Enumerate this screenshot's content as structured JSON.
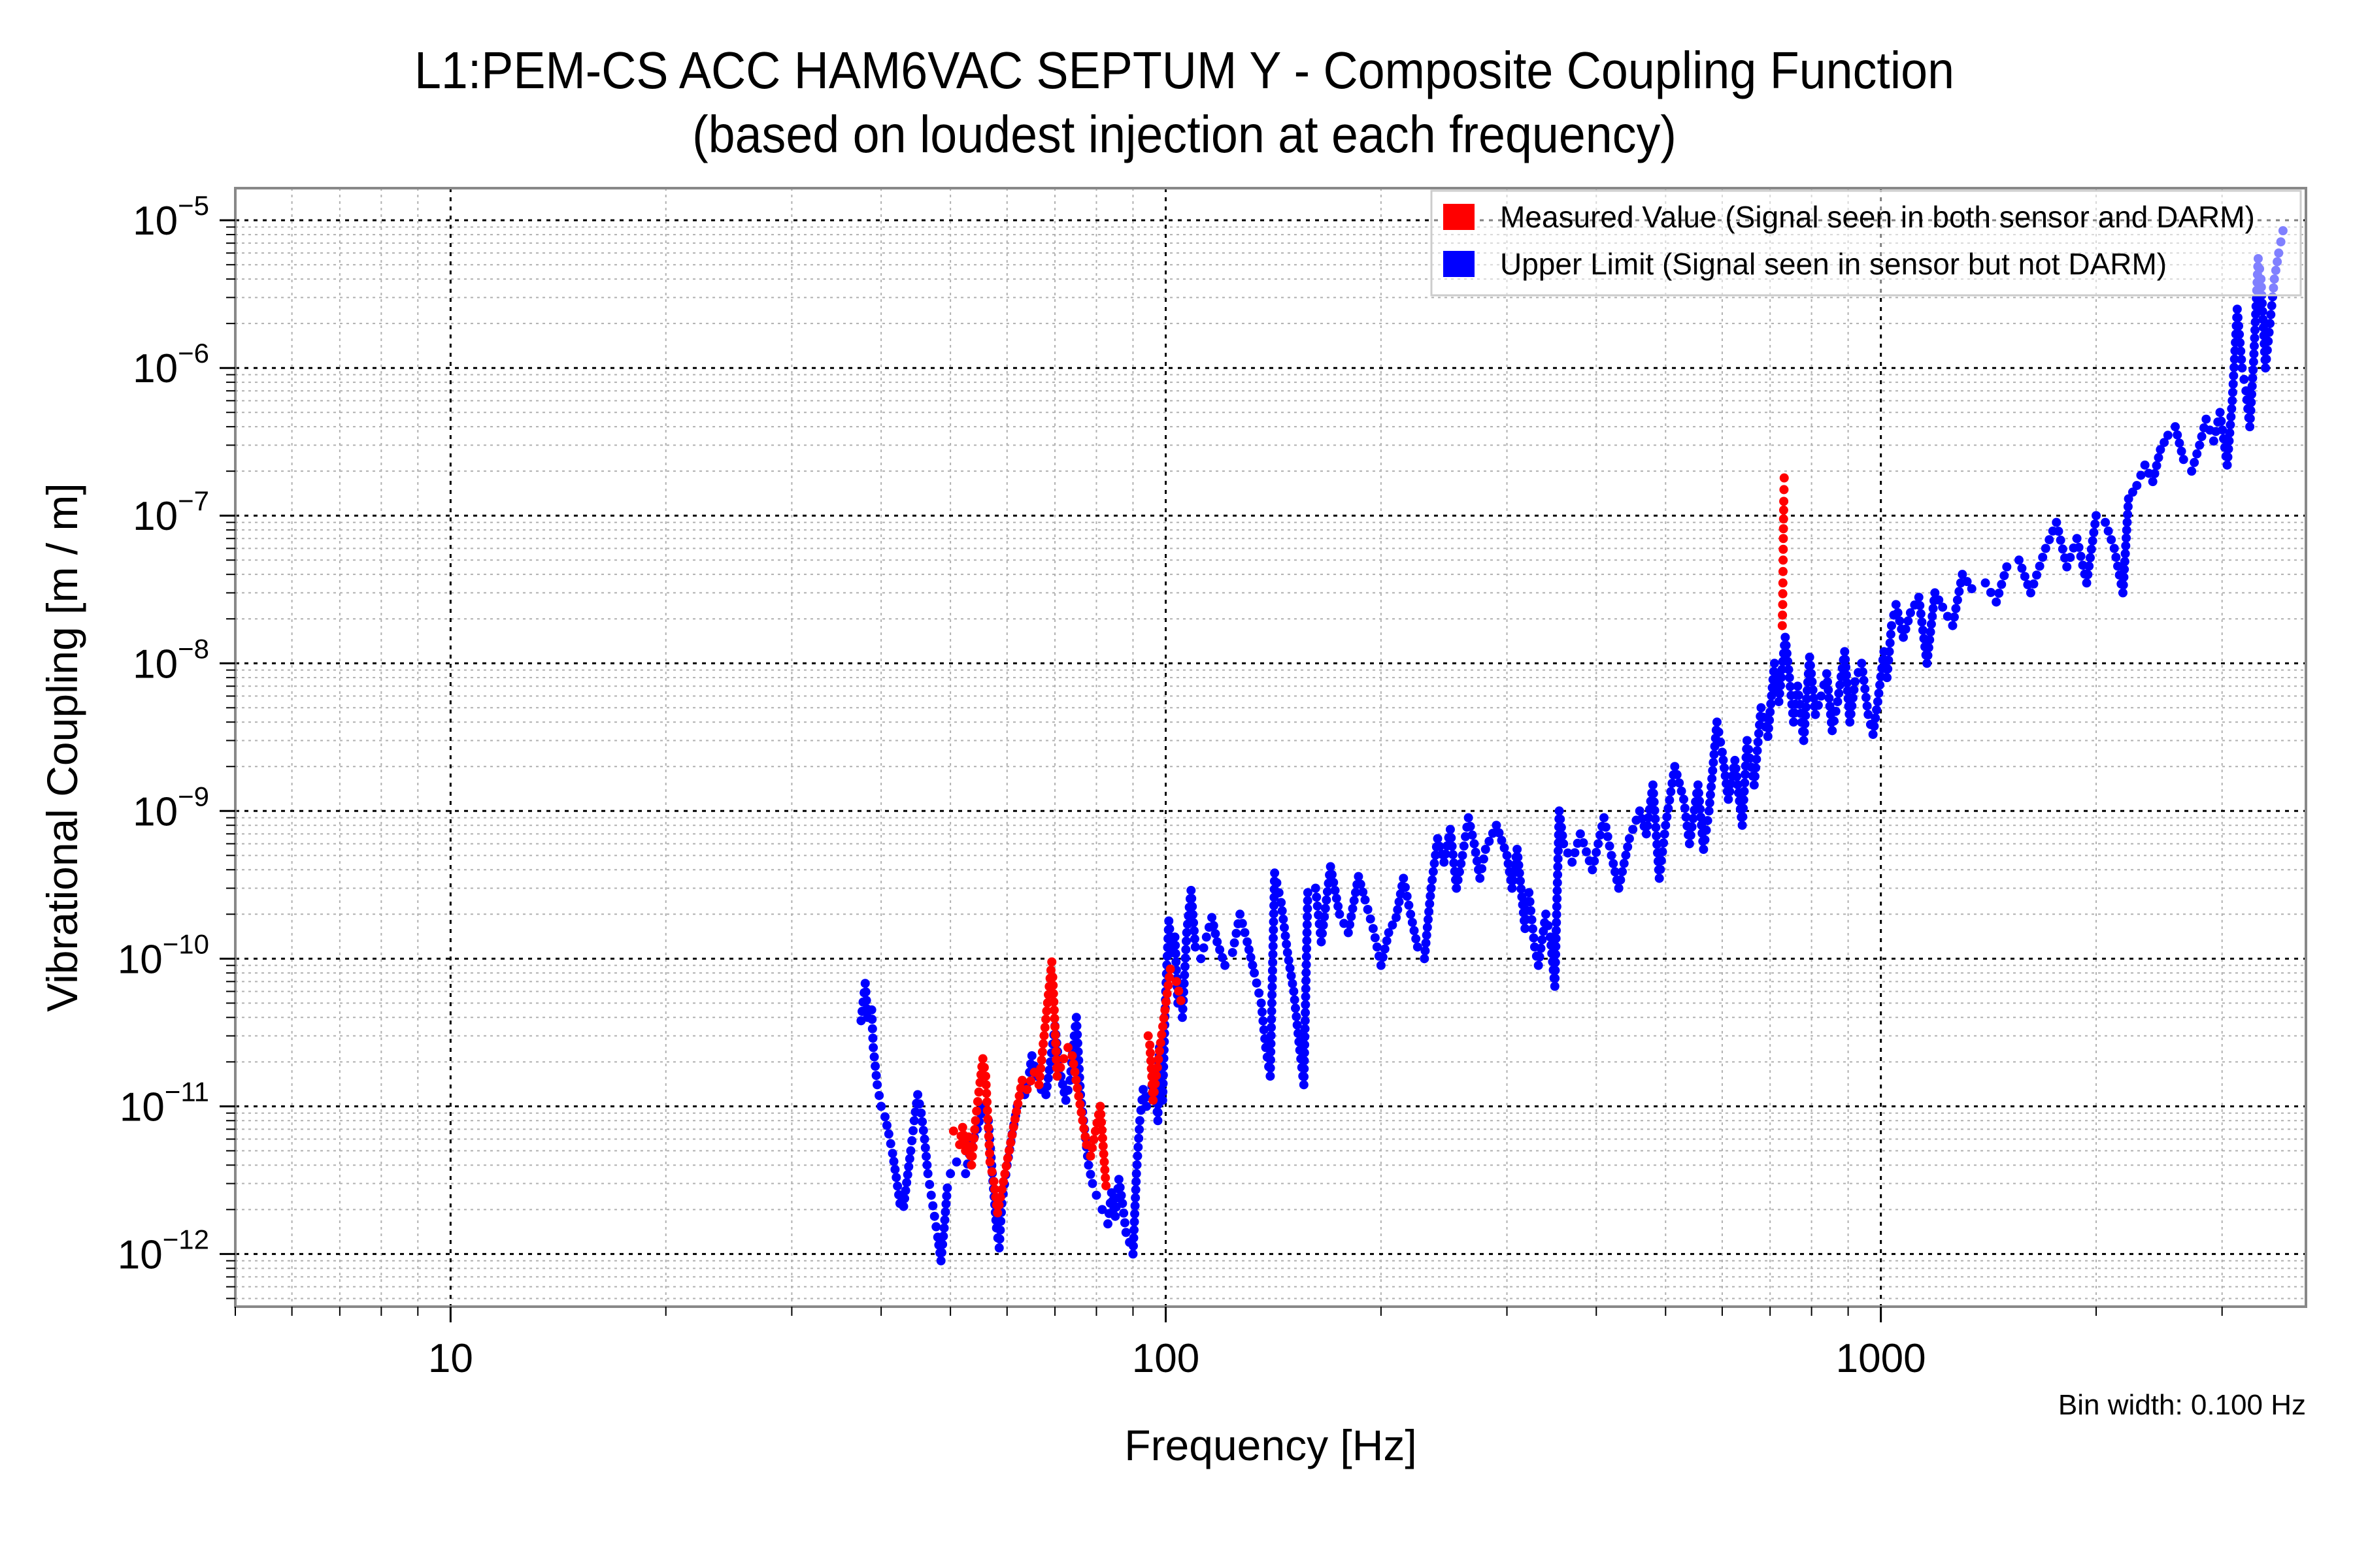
{
  "chart_data": {
    "type": "scatter",
    "title": "L1:PEM-CS ACC HAM6VAC SEPTUM Y - Composite Coupling Function",
    "subtitle": "(based on loudest injection at each frequency)",
    "xlabel": "Frequency [Hz]",
    "ylabel": "Vibrational Coupling [m / m]",
    "xscale": "log",
    "yscale": "log",
    "xlim": [
      5,
      3930
    ],
    "ylim": [
      4.4e-13,
      1.65e-05
    ],
    "grid": true,
    "x_ticks": [
      {
        "value": 10,
        "label": "10"
      },
      {
        "value": 100,
        "label": "100"
      },
      {
        "value": 1000,
        "label": "1000"
      }
    ],
    "y_ticks": [
      {
        "value": 1e-05,
        "base": "10",
        "exp": "−5"
      },
      {
        "value": 1e-06,
        "base": "10",
        "exp": "−6"
      },
      {
        "value": 1e-07,
        "base": "10",
        "exp": "−7"
      },
      {
        "value": 1e-08,
        "base": "10",
        "exp": "−8"
      },
      {
        "value": 1e-09,
        "base": "10",
        "exp": "−9"
      },
      {
        "value": 1e-10,
        "base": "10",
        "exp": "−10"
      },
      {
        "value": 1e-11,
        "base": "10",
        "exp": "−11"
      },
      {
        "value": 1e-12,
        "base": "10",
        "exp": "−12"
      }
    ],
    "legend_position": "top-right",
    "annotation": "Bin width: 0.100 Hz",
    "series": [
      {
        "name": "Measured Value (Signal seen in both sensor and DARM)",
        "color": "#ff0000",
        "points": [
          [
            50.5,
            6.8e-12
          ],
          [
            51.5,
            5.5e-12
          ],
          [
            52.0,
            7.2e-12
          ],
          [
            52.5,
            5e-12
          ],
          [
            53.0,
            6.2e-12
          ],
          [
            53.5,
            4e-12
          ],
          [
            54.2,
            8e-12
          ],
          [
            55.0,
            1.45e-11
          ],
          [
            55.5,
            2.1e-11
          ],
          [
            56.0,
            1.6e-11
          ],
          [
            56.8,
            4.2e-12
          ],
          [
            57.5,
            3.1e-12
          ],
          [
            58.2,
            1.9e-12
          ],
          [
            63.0,
            1.5e-11
          ],
          [
            64.0,
            1.3e-11
          ],
          [
            65.5,
            1.7e-11
          ],
          [
            66.5,
            1.4e-11
          ],
          [
            69.3,
            9.5e-11
          ],
          [
            69.5,
            7.5e-11
          ],
          [
            70.5,
            1.6e-11
          ],
          [
            72.0,
            2.1e-11
          ],
          [
            73.0,
            2.5e-11
          ],
          [
            74.0,
            2.2e-11
          ],
          [
            77.5,
            5.5e-12
          ],
          [
            78.5,
            4.6e-12
          ],
          [
            81.0,
            1e-11
          ],
          [
            82.5,
            2.9e-12
          ],
          [
            94.5,
            3e-11
          ],
          [
            95.0,
            2.6e-11
          ],
          [
            95.5,
            1.8e-11
          ],
          [
            96.0,
            1.1e-11
          ],
          [
            101.5,
            8.5e-11
          ],
          [
            103.5,
            7e-11
          ],
          [
            105.0,
            5.2e-11
          ],
          [
            728,
            1.8e-08
          ],
          [
            729,
            2.5e-08
          ],
          [
            729.5,
            3.5e-08
          ],
          [
            730,
            5e-08
          ],
          [
            730.5,
            7e-08
          ],
          [
            731,
            9.5e-08
          ],
          [
            731.5,
            1.25e-07
          ],
          [
            732,
            1.5e-07
          ],
          [
            732.5,
            1.8e-07
          ]
        ]
      },
      {
        "name": "Upper Limit (Signal seen in sensor but not DARM)",
        "color": "#0000ff",
        "points": [
          [
            37.5,
            3.8e-11
          ],
          [
            38.0,
            6.8e-11
          ],
          [
            38.3,
            4e-11
          ],
          [
            38.8,
            4.5e-11
          ],
          [
            39.0,
            2.5e-11
          ],
          [
            39.5,
            1.4e-11
          ],
          [
            40.0,
            1e-11
          ],
          [
            40.5,
            8.5e-12
          ],
          [
            41.0,
            6.5e-12
          ],
          [
            41.5,
            4.8e-12
          ],
          [
            42.0,
            3.3e-12
          ],
          [
            42.5,
            2.2e-12
          ],
          [
            43.0,
            2.1e-12
          ],
          [
            44.0,
            5e-12
          ],
          [
            44.5,
            8e-12
          ],
          [
            45.0,
            1.2e-11
          ],
          [
            45.5,
            9e-12
          ],
          [
            46.0,
            6e-12
          ],
          [
            46.5,
            3.5e-12
          ],
          [
            47.0,
            2.5e-12
          ],
          [
            47.5,
            1.8e-12
          ],
          [
            48.0,
            1.3e-12
          ],
          [
            48.5,
            9e-13
          ],
          [
            49.0,
            1.5e-12
          ],
          [
            49.5,
            2.8e-12
          ],
          [
            50.0,
            3.5e-12
          ],
          [
            51.0,
            4.2e-12
          ],
          [
            52.5,
            3.5e-12
          ],
          [
            53.5,
            5.5e-12
          ],
          [
            54.5,
            7e-12
          ],
          [
            55.5,
            1e-11
          ],
          [
            56.5,
            8e-12
          ],
          [
            57.0,
            4.5e-12
          ],
          [
            58.0,
            1.5e-12
          ],
          [
            58.5,
            1.1e-12
          ],
          [
            59.0,
            2.2e-12
          ],
          [
            60.0,
            4e-12
          ],
          [
            61.0,
            6.5e-12
          ],
          [
            62.0,
            1e-11
          ],
          [
            63.5,
            1.2e-11
          ],
          [
            64.5,
            1.7e-11
          ],
          [
            65.0,
            2.2e-11
          ],
          [
            66.0,
            1.6e-11
          ],
          [
            67.0,
            1.3e-11
          ],
          [
            68.0,
            1.2e-11
          ],
          [
            69.0,
            2e-11
          ],
          [
            70.0,
            3.5e-11
          ],
          [
            71.0,
            1.8e-11
          ],
          [
            72.5,
            1.1e-11
          ],
          [
            73.5,
            1.5e-11
          ],
          [
            74.5,
            3e-11
          ],
          [
            75.0,
            4e-11
          ],
          [
            76.0,
            1.2e-11
          ],
          [
            77.0,
            7e-12
          ],
          [
            78.0,
            4e-12
          ],
          [
            79.0,
            3e-12
          ],
          [
            80.0,
            2.5e-12
          ],
          [
            81.5,
            2e-12
          ],
          [
            83.0,
            1.6e-12
          ],
          [
            84.0,
            2.6e-12
          ],
          [
            85.0,
            1.8e-12
          ],
          [
            86.0,
            3.2e-12
          ],
          [
            87.0,
            2.2e-12
          ],
          [
            88.0,
            1.4e-12
          ],
          [
            89.0,
            1.2e-12
          ],
          [
            90.0,
            1e-12
          ],
          [
            91.0,
            3.5e-12
          ],
          [
            92.0,
            8e-12
          ],
          [
            93.0,
            1.3e-11
          ],
          [
            94.0,
            1e-11
          ],
          [
            96.5,
            1.6e-11
          ],
          [
            97.5,
            8e-12
          ],
          [
            98.0,
            2.5e-11
          ],
          [
            99.0,
            1.1e-11
          ],
          [
            100.0,
            6e-11
          ],
          [
            101.0,
            1.8e-10
          ],
          [
            102.0,
            1.1e-10
          ],
          [
            103.0,
            1.4e-10
          ],
          [
            104.0,
            5e-11
          ],
          [
            105.5,
            4e-11
          ],
          [
            107.0,
            1.5e-10
          ],
          [
            108.5,
            2.9e-10
          ],
          [
            110.0,
            1.2e-10
          ],
          [
            112.0,
            1e-10
          ],
          [
            114.0,
            1.4e-10
          ],
          [
            116.0,
            1.9e-10
          ],
          [
            118.0,
            1.3e-10
          ],
          [
            121.0,
            9e-11
          ],
          [
            124.0,
            1.1e-10
          ],
          [
            127.0,
            2e-10
          ],
          [
            130.0,
            1.3e-10
          ],
          [
            133.0,
            8e-11
          ],
          [
            136.0,
            5e-11
          ],
          [
            138.0,
            2.5e-11
          ],
          [
            140.0,
            1.6e-11
          ],
          [
            142.0,
            3.8e-10
          ],
          [
            145.0,
            2.4e-10
          ],
          [
            148.0,
            1.1e-10
          ],
          [
            151.0,
            6e-11
          ],
          [
            154.0,
            2.4e-11
          ],
          [
            156.0,
            1.4e-11
          ],
          [
            158.0,
            2.8e-10
          ],
          [
            162.0,
            3e-10
          ],
          [
            165.0,
            1.3e-10
          ],
          [
            170.0,
            4.2e-10
          ],
          [
            175.0,
            2e-10
          ],
          [
            180.0,
            1.5e-10
          ],
          [
            186.0,
            3.6e-10
          ],
          [
            190.0,
            2.5e-10
          ],
          [
            195.0,
            1.6e-10
          ],
          [
            200.0,
            9e-11
          ],
          [
            205.0,
            1.5e-10
          ],
          [
            210.0,
            1.9e-10
          ],
          [
            215.0,
            3.5e-10
          ],
          [
            220.0,
            2e-10
          ],
          [
            225.0,
            1.2e-10
          ],
          [
            230.0,
            1e-10
          ],
          [
            235.0,
            3e-10
          ],
          [
            240.0,
            6.5e-10
          ],
          [
            245.0,
            4.5e-10
          ],
          [
            250.0,
            7.5e-10
          ],
          [
            255.0,
            3e-10
          ],
          [
            260.0,
            5e-10
          ],
          [
            265.0,
            9e-10
          ],
          [
            270.0,
            6e-10
          ],
          [
            275.0,
            3.5e-10
          ],
          [
            280.0,
            5.5e-10
          ],
          [
            290.0,
            8e-10
          ],
          [
            300.0,
            5e-10
          ],
          [
            305.0,
            3e-10
          ],
          [
            310.0,
            5.5e-10
          ],
          [
            318.0,
            1.6e-10
          ],
          [
            322.0,
            2.8e-10
          ],
          [
            328.0,
            1.2e-10
          ],
          [
            332.0,
            9e-11
          ],
          [
            340.0,
            2e-10
          ],
          [
            345.0,
            1.4e-10
          ],
          [
            350.0,
            6.5e-11
          ],
          [
            355.0,
            1e-09
          ],
          [
            360.0,
            6e-10
          ],
          [
            370.0,
            4.5e-10
          ],
          [
            380.0,
            7e-10
          ],
          [
            395.0,
            4e-10
          ],
          [
            410.0,
            9e-10
          ],
          [
            420.0,
            5e-10
          ],
          [
            430.0,
            3e-10
          ],
          [
            445.0,
            6.5e-10
          ],
          [
            460.0,
            1e-09
          ],
          [
            470.0,
            7e-10
          ],
          [
            480.0,
            1.5e-09
          ],
          [
            490.0,
            3.5e-10
          ],
          [
            500.0,
            8e-10
          ],
          [
            515.0,
            2e-09
          ],
          [
            530.0,
            1.2e-09
          ],
          [
            540.0,
            6e-10
          ],
          [
            555.0,
            1.5e-09
          ],
          [
            565.0,
            5.5e-10
          ],
          [
            575.0,
            1e-09
          ],
          [
            590.0,
            4e-09
          ],
          [
            600.0,
            2.5e-09
          ],
          [
            612.0,
            1.2e-09
          ],
          [
            625.0,
            2.2e-09
          ],
          [
            640.0,
            8e-10
          ],
          [
            650.0,
            3e-09
          ],
          [
            665.0,
            1.5e-09
          ],
          [
            680.0,
            5e-09
          ],
          [
            695.0,
            3.2e-09
          ],
          [
            710.0,
            1e-08
          ],
          [
            720.0,
            5.5e-09
          ],
          [
            735.0,
            1.5e-08
          ],
          [
            745.0,
            8e-09
          ],
          [
            755.0,
            4e-09
          ],
          [
            765.0,
            7e-09
          ],
          [
            780.0,
            3e-09
          ],
          [
            795.0,
            1.1e-08
          ],
          [
            810.0,
            4.5e-09
          ],
          [
            825.0,
            6e-09
          ],
          [
            840.0,
            8.5e-09
          ],
          [
            855.0,
            3.5e-09
          ],
          [
            870.0,
            5.5e-09
          ],
          [
            890.0,
            1.2e-08
          ],
          [
            905.0,
            4e-09
          ],
          [
            920.0,
            7.5e-09
          ],
          [
            940.0,
            1e-08
          ],
          [
            960.0,
            4.5e-09
          ],
          [
            975.0,
            3.3e-09
          ],
          [
            990.0,
            5.5e-09
          ],
          [
            1010.0,
            1.2e-08
          ],
          [
            1020.0,
            8e-09
          ],
          [
            1035.0,
            1.8e-08
          ],
          [
            1050.0,
            2.5e-08
          ],
          [
            1075.0,
            1.5e-08
          ],
          [
            1100.0,
            2.2e-08
          ],
          [
            1130.0,
            2.8e-08
          ],
          [
            1160.0,
            1e-08
          ],
          [
            1190.0,
            3e-08
          ],
          [
            1220.0,
            2.4e-08
          ],
          [
            1260.0,
            1.8e-08
          ],
          [
            1300.0,
            4e-08
          ],
          [
            1340.0,
            3.2e-08
          ],
          [
            1400.0,
            3.5e-08
          ],
          [
            1450.0,
            2.6e-08
          ],
          [
            1500.0,
            4.5e-08
          ],
          [
            1560.0,
            5e-08
          ],
          [
            1620.0,
            3e-08
          ],
          [
            1700.0,
            6e-08
          ],
          [
            1760.0,
            9e-08
          ],
          [
            1820.0,
            4.5e-08
          ],
          [
            1880.0,
            7e-08
          ],
          [
            1940.0,
            3.5e-08
          ],
          [
            2000.0,
            1e-07
          ],
          [
            2060.0,
            9e-08
          ],
          [
            2120.0,
            6e-08
          ],
          [
            2180.0,
            3e-08
          ],
          [
            2220.0,
            1.3e-07
          ],
          [
            2280.0,
            1.6e-07
          ],
          [
            2340.0,
            2.2e-07
          ],
          [
            2400.0,
            1.7e-07
          ],
          [
            2460.0,
            2.8e-07
          ],
          [
            2520.0,
            3.5e-07
          ],
          [
            2580.0,
            4e-07
          ],
          [
            2650.0,
            2.4e-07
          ],
          [
            2720.0,
            2e-07
          ],
          [
            2790.0,
            3e-07
          ],
          [
            2850.0,
            4.5e-07
          ],
          [
            2920.0,
            3.2e-07
          ],
          [
            2980.0,
            5e-07
          ],
          [
            3050.0,
            2.2e-07
          ],
          [
            3100.0,
            6e-07
          ],
          [
            3150.0,
            2.5e-06
          ],
          [
            3200.0,
            1e-06
          ],
          [
            3240.0,
            7e-07
          ],
          [
            3280.0,
            4e-07
          ],
          [
            3320.0,
            1.1e-06
          ],
          [
            3370.0,
            5.5e-06
          ],
          [
            3400.0,
            4e-06
          ],
          [
            3450.0,
            1e-06
          ],
          [
            3500.0,
            2e-06
          ],
          [
            3550.0,
            4e-06
          ],
          [
            3600.0,
            6e-06
          ],
          [
            3650.0,
            8.5e-06
          ]
        ]
      }
    ]
  }
}
